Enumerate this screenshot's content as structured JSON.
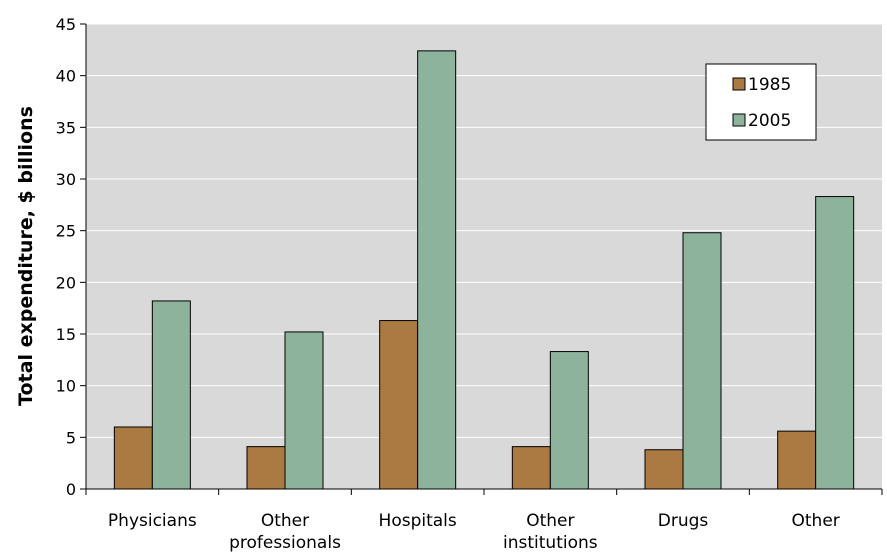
{
  "chart_data": {
    "type": "bar",
    "ylabel": "Total expenditure, $ billions",
    "ylim": [
      0,
      45
    ],
    "yticks": [
      0,
      5,
      10,
      15,
      20,
      25,
      30,
      35,
      40,
      45
    ],
    "grid": true,
    "legend_position": "top-right",
    "categories": [
      [
        "Physicians"
      ],
      [
        "Other",
        "professionals"
      ],
      [
        "Hospitals"
      ],
      [
        "Other",
        "institutions"
      ],
      [
        "Drugs"
      ],
      [
        "Other"
      ]
    ],
    "series": [
      {
        "name": "1985",
        "color": "#ab7942",
        "values": [
          6.0,
          4.1,
          16.3,
          4.1,
          3.8,
          5.6
        ]
      },
      {
        "name": "2005",
        "color": "#8eb39d",
        "values": [
          18.2,
          15.2,
          42.4,
          13.3,
          24.8,
          28.3
        ]
      }
    ],
    "plot_background": "#d9d9d9",
    "grid_color": "#ffffff"
  }
}
